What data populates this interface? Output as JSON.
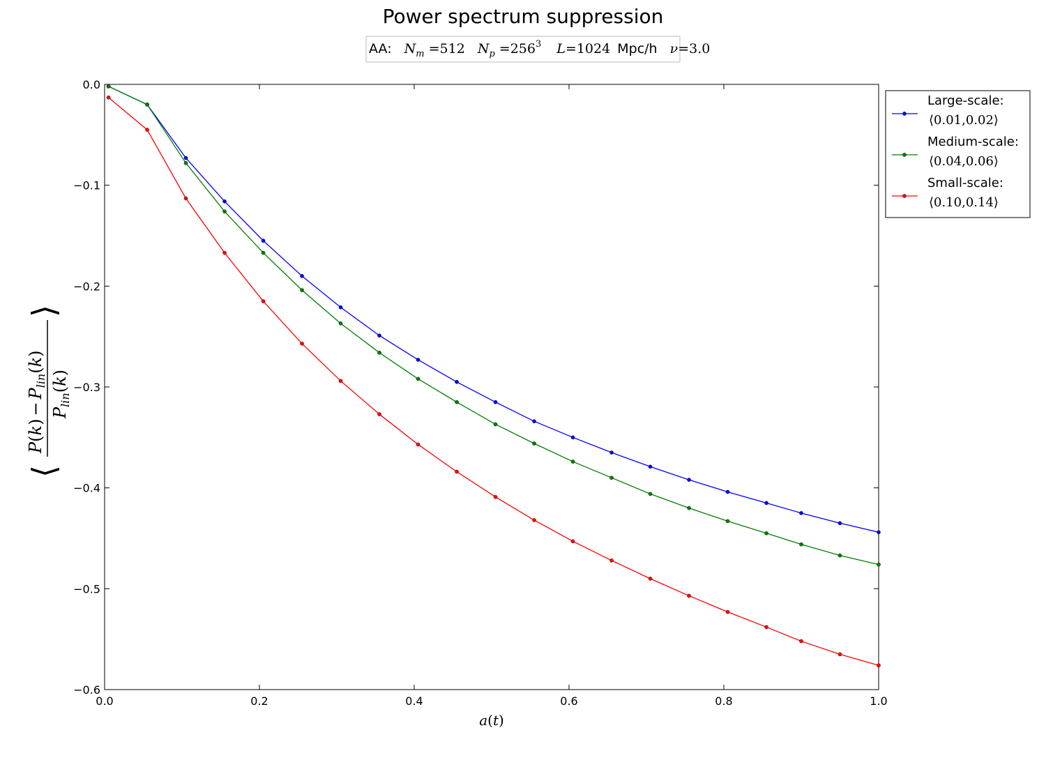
{
  "chart_data": {
    "type": "line",
    "title": "Power spectrum suppression",
    "subtitle": {
      "prefix": "AA:",
      "nm_value": "512",
      "np_base": "256",
      "np_exp": "3",
      "box_value": "1024",
      "box_unit": "Mpc/h",
      "nu_value": "3.0"
    },
    "xlabel": "a(t)",
    "ylabel": "⟨(P(k) − P_lin(k)) / P_lin(k)⟩",
    "xlim": [
      0.0,
      1.0
    ],
    "ylim": [
      -0.6,
      0.0
    ],
    "x_ticks": [
      "0.0",
      "0.2",
      "0.4",
      "0.6",
      "0.8",
      "1.0"
    ],
    "y_ticks": [
      "0.0",
      "−0.1",
      "−0.2",
      "−0.3",
      "−0.4",
      "−0.5",
      "−0.6"
    ],
    "grid": false,
    "legend_position": "outside-right-top",
    "x": [
      0.005,
      0.055,
      0.105,
      0.155,
      0.205,
      0.255,
      0.305,
      0.355,
      0.405,
      0.455,
      0.505,
      0.555,
      0.605,
      0.655,
      0.705,
      0.755,
      0.805,
      0.855,
      0.9,
      0.95,
      1.0
    ],
    "series": [
      {
        "name": "Large-scale:",
        "range": "⟨0.01,0.02⟩",
        "color": "#0000ff",
        "values": [
          -0.002,
          -0.02,
          -0.073,
          -0.116,
          -0.155,
          -0.19,
          -0.221,
          -0.249,
          -0.273,
          -0.295,
          -0.315,
          -0.334,
          -0.35,
          -0.365,
          -0.379,
          -0.392,
          -0.404,
          -0.415,
          -0.425,
          -0.435,
          -0.444
        ]
      },
      {
        "name": "Medium-scale:",
        "range": "⟨0.04,0.06⟩",
        "color": "#007f00",
        "values": [
          -0.002,
          -0.02,
          -0.078,
          -0.126,
          -0.167,
          -0.204,
          -0.237,
          -0.266,
          -0.292,
          -0.315,
          -0.337,
          -0.356,
          -0.374,
          -0.39,
          -0.406,
          -0.42,
          -0.433,
          -0.445,
          -0.456,
          -0.467,
          -0.476
        ]
      },
      {
        "name": "Small-scale:",
        "range": "⟨0.10,0.14⟩",
        "color": "#ff0000",
        "values": [
          -0.013,
          -0.045,
          -0.113,
          -0.167,
          -0.215,
          -0.257,
          -0.294,
          -0.327,
          -0.357,
          -0.384,
          -0.409,
          -0.432,
          -0.453,
          -0.472,
          -0.49,
          -0.507,
          -0.523,
          -0.538,
          -0.552,
          -0.565,
          -0.576
        ]
      }
    ]
  }
}
